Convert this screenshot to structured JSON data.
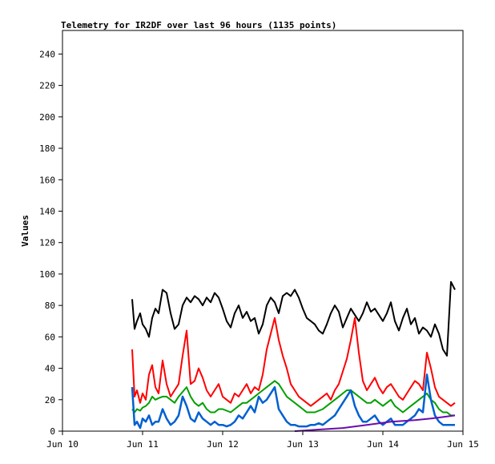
{
  "chart_data": {
    "type": "line",
    "title": "Telemetry for IR2DF over last 96 hours (1135 points)",
    "xlabel": "",
    "ylabel": "Values",
    "ylim": [
      0,
      255
    ],
    "xlim": [
      10,
      15
    ],
    "y_ticks": [
      0,
      20,
      40,
      60,
      80,
      100,
      120,
      140,
      160,
      180,
      200,
      220,
      240
    ],
    "x_ticks": [
      {
        "value": 10,
        "label": "Jun 10"
      },
      {
        "value": 11,
        "label": "Jun 11"
      },
      {
        "value": 12,
        "label": "Jun 12"
      },
      {
        "value": 13,
        "label": "Jun 13"
      },
      {
        "value": 14,
        "label": "Jun 14"
      },
      {
        "value": 15,
        "label": "Jun 15"
      }
    ],
    "grid": false,
    "series": [
      {
        "color": "#000000",
        "x": [
          10.87,
          10.9,
          10.93,
          10.97,
          11.0,
          11.04,
          11.08,
          11.12,
          11.16,
          11.2,
          11.25,
          11.3,
          11.35,
          11.4,
          11.45,
          11.5,
          11.55,
          11.6,
          11.65,
          11.7,
          11.75,
          11.8,
          11.85,
          11.9,
          11.95,
          12.0,
          12.05,
          12.1,
          12.15,
          12.2,
          12.25,
          12.3,
          12.35,
          12.4,
          12.45,
          12.5,
          12.55,
          12.6,
          12.65,
          12.7,
          12.75,
          12.8,
          12.85,
          12.9,
          12.95,
          13.0,
          13.05,
          13.1,
          13.15,
          13.2,
          13.25,
          13.3,
          13.35,
          13.4,
          13.45,
          13.5,
          13.55,
          13.6,
          13.65,
          13.7,
          13.75,
          13.8,
          13.85,
          13.9,
          13.95,
          14.0,
          14.05,
          14.1,
          14.15,
          14.2,
          14.25,
          14.3,
          14.35,
          14.4,
          14.45,
          14.5,
          14.55,
          14.6,
          14.65,
          14.7,
          14.75,
          14.8,
          14.85,
          14.9
        ],
        "values": [
          84,
          65,
          70,
          75,
          68,
          65,
          60,
          72,
          78,
          75,
          90,
          88,
          75,
          65,
          68,
          80,
          85,
          82,
          86,
          84,
          80,
          85,
          82,
          88,
          85,
          78,
          70,
          66,
          75,
          80,
          72,
          76,
          70,
          72,
          62,
          68,
          80,
          85,
          82,
          75,
          86,
          88,
          86,
          90,
          85,
          78,
          72,
          70,
          68,
          64,
          62,
          68,
          75,
          80,
          76,
          66,
          72,
          78,
          74,
          70,
          75,
          82,
          76,
          78,
          74,
          70,
          75,
          82,
          70,
          64,
          72,
          78,
          68,
          72,
          62,
          66,
          64,
          60,
          68,
          62,
          52,
          48,
          95,
          90
        ]
      },
      {
        "color": "#ff0000",
        "x": [
          10.87,
          10.9,
          10.93,
          10.97,
          11.0,
          11.04,
          11.08,
          11.12,
          11.16,
          11.2,
          11.25,
          11.3,
          11.35,
          11.4,
          11.45,
          11.5,
          11.55,
          11.6,
          11.65,
          11.7,
          11.75,
          11.8,
          11.85,
          11.9,
          11.95,
          12.0,
          12.05,
          12.1,
          12.15,
          12.2,
          12.25,
          12.3,
          12.35,
          12.4,
          12.45,
          12.5,
          12.55,
          12.6,
          12.65,
          12.7,
          12.75,
          12.8,
          12.85,
          12.9,
          12.95,
          13.0,
          13.05,
          13.1,
          13.15,
          13.2,
          13.25,
          13.3,
          13.35,
          13.4,
          13.45,
          13.5,
          13.55,
          13.6,
          13.65,
          13.7,
          13.75,
          13.8,
          13.85,
          13.9,
          13.95,
          14.0,
          14.05,
          14.1,
          14.15,
          14.2,
          14.25,
          14.3,
          14.35,
          14.4,
          14.45,
          14.5,
          14.55,
          14.6,
          14.65,
          14.7,
          14.75,
          14.8,
          14.85,
          14.9
        ],
        "values": [
          52,
          22,
          26,
          18,
          24,
          20,
          36,
          42,
          28,
          24,
          45,
          30,
          22,
          26,
          30,
          48,
          64,
          30,
          32,
          40,
          34,
          26,
          22,
          26,
          30,
          22,
          20,
          18,
          24,
          22,
          26,
          30,
          24,
          28,
          26,
          36,
          52,
          62,
          72,
          58,
          48,
          40,
          30,
          26,
          22,
          20,
          18,
          16,
          18,
          20,
          22,
          24,
          20,
          26,
          30,
          38,
          46,
          58,
          72,
          50,
          32,
          26,
          30,
          34,
          28,
          24,
          28,
          30,
          26,
          22,
          20,
          24,
          28,
          32,
          30,
          26,
          50,
          40,
          28,
          22,
          20,
          18,
          16,
          18
        ]
      },
      {
        "color": "#00a000",
        "x": [
          10.87,
          10.9,
          10.93,
          10.97,
          11.0,
          11.04,
          11.08,
          11.12,
          11.16,
          11.2,
          11.25,
          11.3,
          11.35,
          11.4,
          11.45,
          11.5,
          11.55,
          11.6,
          11.65,
          11.7,
          11.75,
          11.8,
          11.85,
          11.9,
          11.95,
          12.0,
          12.05,
          12.1,
          12.15,
          12.2,
          12.25,
          12.3,
          12.35,
          12.4,
          12.45,
          12.5,
          12.55,
          12.6,
          12.65,
          12.7,
          12.75,
          12.8,
          12.85,
          12.9,
          12.95,
          13.0,
          13.05,
          13.1,
          13.15,
          13.2,
          13.25,
          13.3,
          13.35,
          13.4,
          13.45,
          13.5,
          13.55,
          13.6,
          13.65,
          13.7,
          13.75,
          13.8,
          13.85,
          13.9,
          13.95,
          14.0,
          14.05,
          14.1,
          14.15,
          14.2,
          14.25,
          14.3,
          14.35,
          14.4,
          14.45,
          14.5,
          14.55,
          14.6,
          14.65,
          14.7,
          14.75,
          14.8,
          14.85,
          14.9
        ],
        "values": [
          14,
          12,
          14,
          13,
          15,
          16,
          18,
          22,
          20,
          21,
          22,
          22,
          20,
          18,
          22,
          25,
          28,
          22,
          18,
          16,
          18,
          14,
          12,
          12,
          14,
          14,
          13,
          12,
          14,
          16,
          18,
          18,
          20,
          22,
          24,
          26,
          28,
          30,
          32,
          30,
          26,
          22,
          20,
          18,
          16,
          14,
          12,
          12,
          12,
          13,
          14,
          16,
          18,
          20,
          22,
          24,
          26,
          26,
          24,
          22,
          20,
          18,
          18,
          20,
          18,
          16,
          18,
          20,
          16,
          14,
          12,
          14,
          16,
          18,
          20,
          22,
          24,
          20,
          18,
          14,
          12,
          12,
          10,
          10
        ]
      },
      {
        "color": "#0060d0",
        "x": [
          10.87,
          10.9,
          10.93,
          10.97,
          11.0,
          11.04,
          11.08,
          11.12,
          11.16,
          11.2,
          11.25,
          11.3,
          11.35,
          11.4,
          11.45,
          11.5,
          11.55,
          11.6,
          11.65,
          11.7,
          11.75,
          11.8,
          11.85,
          11.9,
          11.95,
          12.0,
          12.05,
          12.1,
          12.15,
          12.2,
          12.25,
          12.3,
          12.35,
          12.4,
          12.45,
          12.5,
          12.55,
          12.6,
          12.65,
          12.7,
          12.75,
          12.8,
          12.85,
          12.9,
          12.95,
          13.0,
          13.05,
          13.1,
          13.15,
          13.2,
          13.25,
          13.3,
          13.35,
          13.4,
          13.45,
          13.5,
          13.55,
          13.6,
          13.65,
          13.7,
          13.75,
          13.8,
          13.85,
          13.9,
          13.95,
          14.0,
          14.05,
          14.1,
          14.15,
          14.2,
          14.25,
          14.3,
          14.35,
          14.4,
          14.45,
          14.5,
          14.55,
          14.6,
          14.65,
          14.7,
          14.75,
          14.8,
          14.85,
          14.9
        ],
        "values": [
          28,
          4,
          6,
          2,
          8,
          6,
          10,
          4,
          6,
          6,
          14,
          8,
          4,
          6,
          10,
          22,
          16,
          8,
          6,
          12,
          8,
          6,
          4,
          6,
          4,
          4,
          3,
          4,
          6,
          10,
          8,
          12,
          16,
          12,
          22,
          18,
          20,
          24,
          28,
          14,
          10,
          6,
          4,
          4,
          3,
          3,
          3,
          4,
          4,
          5,
          4,
          6,
          8,
          10,
          14,
          18,
          22,
          26,
          16,
          10,
          6,
          6,
          8,
          10,
          6,
          4,
          6,
          8,
          4,
          4,
          4,
          6,
          8,
          10,
          14,
          12,
          36,
          20,
          10,
          6,
          4,
          4,
          4,
          4
        ]
      },
      {
        "color": "#6a0dad",
        "x": [
          12.9,
          13.2,
          13.5,
          13.8,
          14.1,
          14.4,
          14.6,
          14.75,
          14.9
        ],
        "values": [
          0,
          1,
          2,
          4,
          6,
          7,
          8,
          9,
          10
        ]
      }
    ]
  }
}
